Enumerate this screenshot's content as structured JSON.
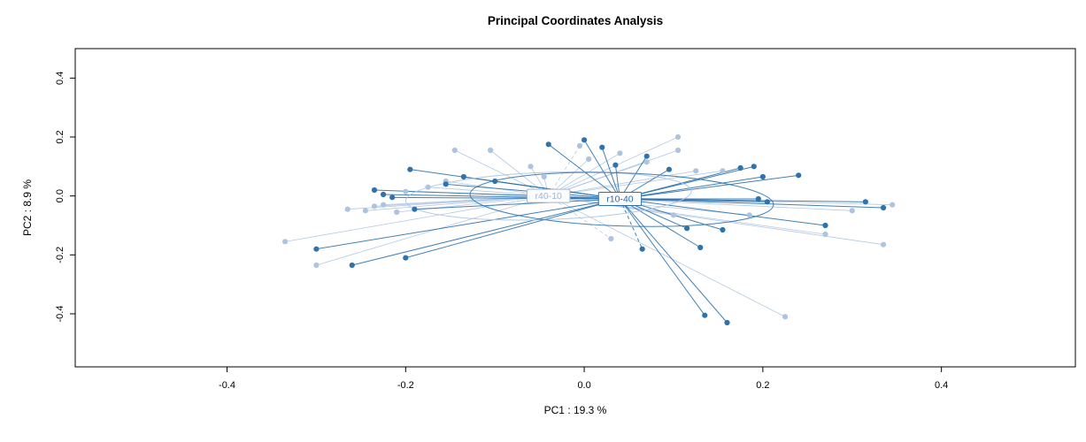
{
  "chart_data": {
    "type": "scatter",
    "title": "Principal Coordinates Analysis",
    "xlabel": "PC1 :  19.3 %",
    "ylabel": "PC2 :  8.9 %",
    "xlim": [
      -0.57,
      0.55
    ],
    "ylim": [
      -0.58,
      0.5
    ],
    "xticks": [
      -0.4,
      -0.2,
      0,
      0.2,
      0.4
    ],
    "xtick_labels": [
      "-0.4",
      "-0.2",
      "0.0",
      "0.2",
      "0.4"
    ],
    "yticks": [
      -0.4,
      -0.2,
      0,
      0.2,
      0.4
    ],
    "ytick_labels": [
      "-0.4",
      "-0.2",
      "0.0",
      "0.2",
      "0.4"
    ],
    "grid": false,
    "legend": "none",
    "frame_color": "#000000",
    "background": "#ffffff",
    "groups": [
      {
        "name": "r40-10",
        "color": "#adc3e0",
        "label_color": "#a3b6d2",
        "line_width": 0.8,
        "centroid": [
          -0.04,
          0.0
        ],
        "ellipse": {
          "cx": -0.04,
          "cy": 0.0,
          "rx": 0.16,
          "ry": 0.08,
          "angle": -2
        },
        "points": [
          [
            -0.335,
            -0.155
          ],
          [
            -0.3,
            -0.235
          ],
          [
            -0.265,
            -0.045
          ],
          [
            -0.245,
            -0.05
          ],
          [
            -0.235,
            -0.035
          ],
          [
            -0.225,
            -0.03
          ],
          [
            -0.21,
            -0.055
          ],
          [
            -0.2,
            0.015
          ],
          [
            -0.175,
            0.03
          ],
          [
            -0.155,
            0.05
          ],
          [
            -0.145,
            0.155
          ],
          [
            -0.105,
            0.155
          ],
          [
            -0.06,
            0.1
          ],
          [
            -0.045,
            0.065
          ],
          [
            0.005,
            0.125
          ],
          [
            0.04,
            0.145
          ],
          [
            0.07,
            0.115
          ],
          [
            0.105,
            0.2
          ],
          [
            0.105,
            0.155
          ],
          [
            0.1,
            -0.065
          ],
          [
            0.125,
            0.085
          ],
          [
            0.155,
            0.085
          ],
          [
            0.185,
            -0.065
          ],
          [
            0.225,
            -0.41
          ],
          [
            0.27,
            -0.13
          ],
          [
            0.3,
            -0.05
          ],
          [
            0.335,
            -0.165
          ],
          [
            0.345,
            -0.03
          ],
          [
            0.03,
            -0.145,
            1
          ],
          [
            -0.005,
            0.17,
            1
          ]
        ]
      },
      {
        "name": "r10-40",
        "color": "#2e73ae",
        "label_color": "#2b6ca6",
        "line_width": 1,
        "centroid": [
          0.04,
          -0.01
        ],
        "ellipse": {
          "cx": 0.042,
          "cy": -0.012,
          "rx": 0.17,
          "ry": 0.09,
          "angle": 2
        },
        "points": [
          [
            -0.3,
            -0.18
          ],
          [
            -0.26,
            -0.235
          ],
          [
            -0.235,
            0.02
          ],
          [
            -0.225,
            0.005
          ],
          [
            -0.215,
            -0.005
          ],
          [
            -0.2,
            -0.21
          ],
          [
            -0.195,
            0.09
          ],
          [
            -0.19,
            -0.045
          ],
          [
            -0.155,
            0.04
          ],
          [
            -0.135,
            0.065
          ],
          [
            -0.1,
            0.05
          ],
          [
            -0.04,
            0.175
          ],
          [
            0.0,
            0.19
          ],
          [
            0.02,
            0.165
          ],
          [
            0.035,
            0.105
          ],
          [
            0.07,
            0.135
          ],
          [
            0.095,
            0.09
          ],
          [
            0.115,
            -0.11
          ],
          [
            0.13,
            -0.175
          ],
          [
            0.135,
            -0.405
          ],
          [
            0.16,
            -0.43
          ],
          [
            0.155,
            -0.115
          ],
          [
            0.175,
            0.095
          ],
          [
            0.19,
            0.1
          ],
          [
            0.2,
            0.065
          ],
          [
            0.195,
            -0.01
          ],
          [
            0.205,
            -0.02
          ],
          [
            0.24,
            0.07
          ],
          [
            0.27,
            -0.1
          ],
          [
            0.315,
            -0.02
          ],
          [
            0.335,
            -0.04
          ],
          [
            0.065,
            -0.18,
            1
          ]
        ]
      }
    ]
  }
}
